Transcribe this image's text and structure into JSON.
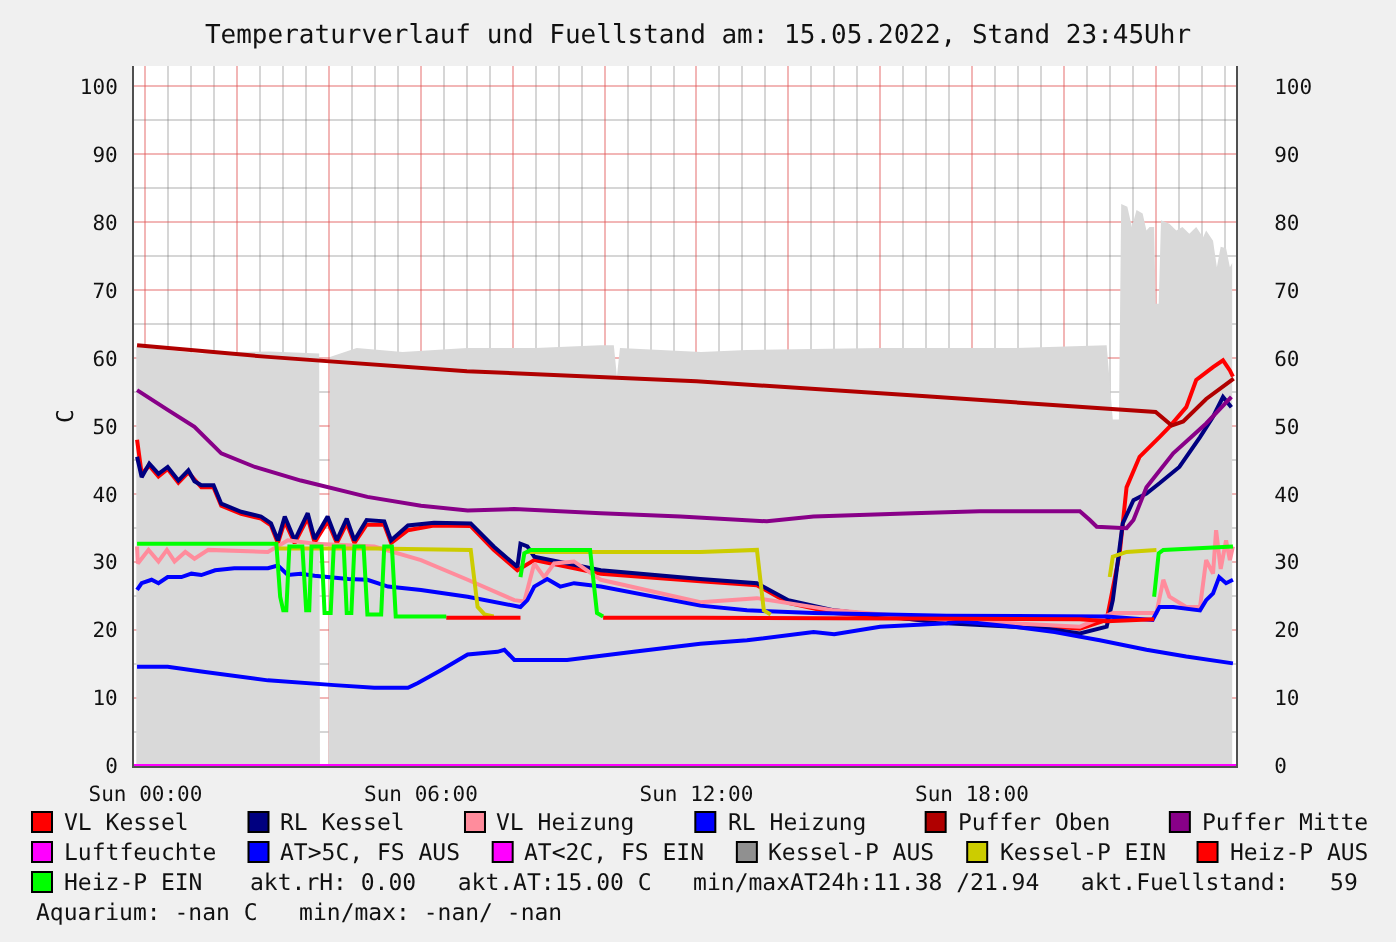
{
  "chart_data": {
    "type": "line",
    "title": "Temperaturverlauf und Fuellstand am: 15.05.2022, Stand 23:45Uhr",
    "ylabel": "C",
    "xlim": [
      "2022-05-14T23:45",
      "2022-05-15T23:45"
    ],
    "xticks": [
      {
        "value": "2022-05-15T00:00",
        "label": "Sun 00:00"
      },
      {
        "value": "2022-05-15T02:00",
        "label": null
      },
      {
        "value": "2022-05-15T04:00",
        "label": null
      },
      {
        "value": "2022-05-15T06:00",
        "label": "Sun 06:00"
      },
      {
        "value": "2022-05-15T08:00",
        "label": null
      },
      {
        "value": "2022-05-15T10:00",
        "label": null
      },
      {
        "value": "2022-05-15T12:00",
        "label": "Sun 12:00"
      },
      {
        "value": "2022-05-15T14:00",
        "label": null
      },
      {
        "value": "2022-05-15T16:00",
        "label": null
      },
      {
        "value": "2022-05-15T18:00",
        "label": "Sun 18:00"
      },
      {
        "value": "2022-05-15T20:00",
        "label": null
      },
      {
        "value": "2022-05-15T22:00",
        "label": null
      }
    ],
    "ylim": [
      0,
      103
    ],
    "yticks": [
      0,
      10,
      20,
      30,
      40,
      50,
      60,
      70,
      80,
      90,
      100
    ],
    "y2lim": [
      0,
      103
    ],
    "y2ticks": [
      0,
      10,
      20,
      30,
      40,
      50,
      60,
      70,
      80,
      90,
      100
    ],
    "grid": true,
    "legend": "bottom",
    "annotations": [
      "akt.rH: 0.00   akt.AT:15.00 C   min/maxAT24h:11.38 /21.94   akt.Fuellstand:   59",
      "Aquarium: -nan C   min/max: -nan/ -nan"
    ],
    "series": [
      {
        "type": "area",
        "color": "#d9d9d9",
        "x": [
          "2022-05-14T23:48",
          "2022-05-15T01:12",
          "2022-05-15T01:54",
          "2022-05-15T02:42",
          "2022-05-15T03:47",
          "2022-05-15T03:48",
          "2022-05-15T03:59",
          "2022-05-15T04:01",
          "2022-05-15T04:36",
          "2022-05-15T05:36",
          "2022-05-15T07:00",
          "2022-05-15T08:30",
          "2022-05-15T09:54",
          "2022-05-15T10:12",
          "2022-05-15T10:16",
          "2022-05-15T10:20",
          "2022-05-15T12:06",
          "2022-05-15T13:06",
          "2022-05-15T16:00",
          "2022-05-15T18:54",
          "2022-05-15T20:56",
          "2022-05-15T21:04",
          "2022-05-15T21:12",
          "2022-05-15T21:15",
          "2022-05-15T21:23",
          "2022-05-15T21:29",
          "2022-05-15T21:35",
          "2022-05-15T21:43",
          "2022-05-15T21:48",
          "2022-05-15T21:52",
          "2022-05-15T21:58",
          "2022-05-15T22:00",
          "2022-05-15T22:04",
          "2022-05-15T22:07",
          "2022-05-15T22:18",
          "2022-05-15T22:27",
          "2022-05-15T22:35",
          "2022-05-15T22:44",
          "2022-05-15T22:53",
          "2022-05-15T23:02",
          "2022-05-15T23:06",
          "2022-05-15T23:15",
          "2022-05-15T23:20",
          "2022-05-15T23:25",
          "2022-05-15T23:32",
          "2022-05-15T23:37",
          "2022-05-15T23:40"
        ],
        "values": [
          61.7,
          60.7,
          60.9,
          61,
          60.7,
          0,
          0,
          60.2,
          61.5,
          60.9,
          61.5,
          61.5,
          61.9,
          61.9,
          57.3,
          61.5,
          60.9,
          61.2,
          61.5,
          61.5,
          61.9,
          51,
          51,
          82.7,
          82.3,
          79.3,
          81.8,
          81.3,
          78.8,
          79.3,
          79.3,
          68,
          68,
          80.3,
          79.8,
          78.8,
          79.3,
          78.3,
          79.3,
          77.8,
          78.8,
          77.3,
          73.4,
          76.4,
          76.2,
          73.4,
          74
        ]
      },
      {
        "name": "VL Kessel",
        "color": "#ff0000",
        "x": [
          "2022-05-14T23:49",
          "2022-05-14T23:55",
          "2022-05-15T00:05",
          "2022-05-15T00:17",
          "2022-05-15T00:29",
          "2022-05-15T00:43",
          "2022-05-15T00:56",
          "2022-05-15T01:13",
          "2022-05-15T01:29",
          "2022-05-15T01:39",
          "2022-05-15T02:05",
          "2022-05-15T02:31",
          "2022-05-15T02:44",
          "2022-05-15T02:53",
          "2022-05-15T03:02",
          "2022-05-15T03:15",
          "2022-05-15T03:32",
          "2022-05-15T03:41",
          "2022-05-15T03:58",
          "2022-05-15T04:10",
          "2022-05-15T04:23",
          "2022-05-15T04:33",
          "2022-05-15T04:49",
          "2022-05-15T05:12",
          "2022-05-15T05:21",
          "2022-05-15T05:43",
          "2022-05-15T06:17",
          "2022-05-15T07:05",
          "2022-05-15T07:35",
          "2022-05-15T08:06",
          "2022-05-15T08:28",
          "2022-05-15T09:55",
          "2022-05-15T12:05",
          "2022-05-15T13:19",
          "2022-05-15T14:00",
          "2022-05-15T15:00",
          "2022-05-15T17:27",
          "2022-05-15T19:39",
          "2022-05-15T20:21",
          "2022-05-15T20:56",
          "2022-05-15T21:13",
          "2022-05-15T21:22",
          "2022-05-15T21:39",
          "2022-05-15T22:05",
          "2022-05-15T22:18",
          "2022-05-15T22:40",
          "2022-05-15T22:53",
          "2022-05-15T23:15",
          "2022-05-15T23:28",
          "2022-05-15T23:37",
          "2022-05-15T23:41"
        ],
        "values": [
          48,
          43,
          44.2,
          42.6,
          43.7,
          41.7,
          43.2,
          41,
          41,
          38.3,
          37.1,
          36.4,
          35.4,
          32.8,
          36,
          32.8,
          36.5,
          32.9,
          36,
          32.8,
          35.7,
          32.8,
          35.5,
          35.5,
          32.8,
          34.7,
          35.4,
          35.3,
          31.8,
          28.8,
          30.3,
          28.3,
          27.2,
          26.6,
          24,
          22.5,
          21.2,
          20.6,
          20.2,
          21.5,
          31.3,
          41,
          45.5,
          48.4,
          49.9,
          52.8,
          56.8,
          58.7,
          59.7,
          58.2,
          57.3
        ]
      },
      {
        "name": "RL Kessel",
        "color": "#000080",
        "x": [
          "2022-05-14T23:49",
          "2022-05-14T23:55",
          "2022-05-15T00:05",
          "2022-05-15T00:17",
          "2022-05-15T00:29",
          "2022-05-15T00:43",
          "2022-05-15T00:56",
          "2022-05-15T01:04",
          "2022-05-15T01:13",
          "2022-05-15T01:29",
          "2022-05-15T01:39",
          "2022-05-15T02:05",
          "2022-05-15T02:31",
          "2022-05-15T02:44",
          "2022-05-15T02:53",
          "2022-05-15T03:02",
          "2022-05-15T03:15",
          "2022-05-15T03:32",
          "2022-05-15T03:41",
          "2022-05-15T03:58",
          "2022-05-15T04:10",
          "2022-05-15T04:23",
          "2022-05-15T04:33",
          "2022-05-15T04:49",
          "2022-05-15T05:12",
          "2022-05-15T05:21",
          "2022-05-15T05:43",
          "2022-05-15T06:17",
          "2022-05-15T07:05",
          "2022-05-15T07:35",
          "2022-05-15T08:06",
          "2022-05-15T08:10",
          "2022-05-15T08:19",
          "2022-05-15T08:28",
          "2022-05-15T09:55",
          "2022-05-15T12:05",
          "2022-05-15T13:19",
          "2022-05-15T14:00",
          "2022-05-15T15:00",
          "2022-05-15T17:27",
          "2022-05-15T19:39",
          "2022-05-15T20:21",
          "2022-05-15T20:56",
          "2022-05-15T21:04",
          "2022-05-15T21:17",
          "2022-05-15T21:31",
          "2022-05-15T21:48",
          "2022-05-15T22:05",
          "2022-05-15T22:31",
          "2022-05-15T22:58",
          "2022-05-15T23:15",
          "2022-05-15T23:28",
          "2022-05-15T23:39"
        ],
        "values": [
          45.5,
          42.5,
          44.5,
          43,
          44,
          42,
          43.5,
          41.9,
          41.3,
          41.3,
          38.6,
          37.4,
          36.7,
          35.7,
          33.2,
          36.7,
          33.2,
          37.2,
          33.4,
          36.7,
          33.2,
          36.4,
          33.2,
          36.2,
          36,
          33.2,
          35.4,
          35.8,
          35.7,
          32.3,
          29.3,
          32.7,
          32.3,
          30.8,
          28.8,
          27.5,
          26.9,
          24.4,
          22.9,
          21,
          20.2,
          19.5,
          20.5,
          24.4,
          35.7,
          39.1,
          40.1,
          41.6,
          44,
          48.4,
          51.4,
          54.3,
          52.8
        ]
      },
      {
        "name": "VL Heizung",
        "color": "#ff8c9c",
        "x": [
          "2022-05-14T23:49",
          "2022-05-14T23:50",
          "2022-05-15T00:04",
          "2022-05-15T00:17",
          "2022-05-15T00:28",
          "2022-05-15T00:38",
          "2022-05-15T00:52",
          "2022-05-15T01:04",
          "2022-05-15T01:22",
          "2022-05-15T02:40",
          "2022-05-15T03:06",
          "2022-05-15T03:41",
          "2022-05-15T04:59",
          "2022-05-15T06:00",
          "2022-05-15T07:01",
          "2022-05-15T08:02",
          "2022-05-15T08:15",
          "2022-05-15T08:28",
          "2022-05-15T08:41",
          "2022-05-15T08:54",
          "2022-05-15T09:20",
          "2022-05-15T09:55",
          "2022-05-15T12:05",
          "2022-05-15T13:19",
          "2022-05-15T15:00",
          "2022-05-15T17:27",
          "2022-05-15T20:21",
          "2022-05-15T21:04",
          "2022-05-15T22:01",
          "2022-05-15T22:10",
          "2022-05-15T22:18",
          "2022-05-15T22:40",
          "2022-05-15T22:58",
          "2022-05-15T23:06",
          "2022-05-15T23:15",
          "2022-05-15T23:19",
          "2022-05-15T23:25",
          "2022-05-15T23:32",
          "2022-05-15T23:37",
          "2022-05-15T23:41"
        ],
        "values": [
          32.3,
          29.8,
          31.8,
          30.1,
          31.8,
          30.1,
          31.5,
          30.5,
          31.8,
          31.5,
          33.2,
          32.7,
          32.3,
          30.3,
          27.4,
          24.4,
          24.2,
          29.8,
          27.8,
          29.8,
          30.1,
          27.4,
          24.1,
          24.7,
          22.9,
          21.5,
          20.5,
          22.5,
          22.5,
          27.4,
          24.9,
          23.4,
          23.4,
          30.3,
          28.3,
          34.7,
          29,
          33.2,
          30.3,
          32.3
        ]
      },
      {
        "name": "RL Heizung",
        "color": "#0000ff",
        "x": [
          "2022-05-14T23:49",
          "2022-05-14T23:55",
          "2022-05-15T00:08",
          "2022-05-15T00:17",
          "2022-05-15T00:29",
          "2022-05-15T00:47",
          "2022-05-15T01:00",
          "2022-05-15T01:13",
          "2022-05-15T01:31",
          "2022-05-15T01:56",
          "2022-05-15T02:40",
          "2022-05-15T02:53",
          "2022-05-15T03:06",
          "2022-05-15T03:23",
          "2022-05-15T03:41",
          "2022-05-15T04:25",
          "2022-05-15T04:50",
          "2022-05-15T05:17",
          "2022-05-15T06:00",
          "2022-05-15T07:01",
          "2022-05-15T08:10",
          "2022-05-15T08:19",
          "2022-05-15T08:28",
          "2022-05-15T08:45",
          "2022-05-15T09:02",
          "2022-05-15T09:20",
          "2022-05-15T09:55",
          "2022-05-15T12:05",
          "2022-05-15T13:06",
          "2022-05-15T14:33",
          "2022-05-15T17:27",
          "2022-05-15T20:56",
          "2022-05-15T21:56",
          "2022-05-15T22:05",
          "2022-05-15T22:23",
          "2022-05-15T22:58",
          "2022-05-15T23:06",
          "2022-05-15T23:15",
          "2022-05-15T23:23",
          "2022-05-15T23:32",
          "2022-05-15T23:41"
        ],
        "values": [
          25.9,
          26.9,
          27.4,
          26.9,
          27.8,
          27.8,
          28.3,
          28.1,
          28.8,
          29.1,
          29.1,
          29.5,
          28.1,
          28.3,
          28,
          27.5,
          27.4,
          26.4,
          25.9,
          24.9,
          23.4,
          24.4,
          26.4,
          27.5,
          26.4,
          26.9,
          26.4,
          23.6,
          22.9,
          22.5,
          22.1,
          22,
          21.5,
          23.4,
          23.4,
          22.9,
          24.4,
          25.4,
          27.8,
          26.9,
          27.4
        ]
      },
      {
        "name": "Puffer Oben",
        "color": "#b00000",
        "x": [
          "2022-05-14T23:49",
          "2022-05-15T02:40",
          "2022-05-15T07:00",
          "2022-05-15T12:00",
          "2022-05-15T17:00",
          "2022-05-15T22:00",
          "2022-05-15T22:21",
          "2022-05-15T22:36",
          "2022-05-15T23:06",
          "2022-05-15T23:42"
        ],
        "values": [
          61.9,
          60.2,
          58.1,
          56.6,
          54.4,
          52.1,
          50.1,
          50.7,
          54,
          57
        ]
      },
      {
        "name": "Puffer Mitte",
        "color": "#880088",
        "x": [
          "2022-05-14T23:49",
          "2022-05-15T00:29",
          "2022-05-15T01:04",
          "2022-05-15T01:39",
          "2022-05-15T02:23",
          "2022-05-15T03:23",
          "2022-05-15T04:50",
          "2022-05-15T06:00",
          "2022-05-15T07:01",
          "2022-05-15T08:02",
          "2022-05-15T09:55",
          "2022-05-15T11:39",
          "2022-05-15T13:32",
          "2022-05-15T14:33",
          "2022-05-15T16:43",
          "2022-05-15T18:10",
          "2022-05-15T20:21",
          "2022-05-15T20:34",
          "2022-05-15T20:43",
          "2022-05-15T21:22",
          "2022-05-15T21:31",
          "2022-05-15T21:48",
          "2022-05-15T22:23",
          "2022-05-15T23:06",
          "2022-05-15T23:39"
        ],
        "values": [
          55.3,
          52.4,
          49.9,
          46,
          44,
          42,
          39.6,
          38.3,
          37.6,
          37.8,
          37.2,
          36.7,
          36,
          36.7,
          37.2,
          37.5,
          37.5,
          36.2,
          35.2,
          35,
          36.2,
          41,
          46,
          50.4,
          54.3
        ]
      },
      {
        "name": "Luftfeuchte",
        "color": "#ff00ff",
        "x": [
          "2022-05-14T23:45",
          "2022-05-15T23:45"
        ],
        "values": [
          0,
          0
        ]
      },
      {
        "name": "AT>5C, FS AUS",
        "color": "#0000ff",
        "x": [
          "2022-05-14T23:49",
          "2022-05-15T00:29",
          "2022-05-15T01:13",
          "2022-05-15T02:40",
          "2022-05-15T04:07",
          "2022-05-15T04:59",
          "2022-05-15T05:43",
          "2022-05-15T05:56",
          "2022-05-15T06:26",
          "2022-05-15T07:01",
          "2022-05-15T07:40",
          "2022-05-15T07:49",
          "2022-05-15T08:02",
          "2022-05-15T09:11",
          "2022-05-15T10:38",
          "2022-05-15T12:05",
          "2022-05-15T13:06",
          "2022-05-15T14:33",
          "2022-05-15T15:00",
          "2022-05-15T16:00",
          "2022-05-15T17:27",
          "2022-05-15T17:45",
          "2022-05-15T18:54",
          "2022-05-15T19:48",
          "2022-05-15T20:47",
          "2022-05-15T21:48",
          "2022-05-15T22:40",
          "2022-05-15T23:41"
        ],
        "values": [
          14.6,
          14.6,
          13.9,
          12.6,
          11.9,
          11.5,
          11.5,
          12.2,
          14.1,
          16.4,
          16.8,
          17.1,
          15.6,
          15.6,
          16.8,
          18,
          18.5,
          19.7,
          19.4,
          20.5,
          21,
          21.3,
          20.5,
          19.7,
          18.5,
          17.1,
          16.1,
          15.1
        ]
      },
      {
        "name": "AT<2C, FS EIN",
        "color": "#ff00ff"
      },
      {
        "name": "Kessel-P AUS",
        "color": "#909090"
      },
      {
        "name": "Kessel-P EIN",
        "color": "#cccc00",
        "x": [
          "2022-05-15T02:53",
          "2022-05-15T05:00",
          "2022-05-15T07:05",
          "2022-05-15T07:14",
          "2022-05-15T07:23",
          "2022-05-15T07:35",
          "2022-05-15T07:36",
          "2022-05-15T08:19",
          "2022-05-15T12:05",
          "2022-05-15T13:19",
          "2022-05-15T13:28",
          "2022-05-15T13:37",
          "2022-05-15T13:38",
          "2022-05-15T21:00",
          "2022-05-15T21:04",
          "2022-05-15T21:22",
          "2022-05-15T22:01"
        ],
        "values": [
          32,
          32,
          31.8,
          23.4,
          22.3,
          22,
          null,
          31.5,
          31.5,
          31.8,
          22.9,
          22.3,
          null,
          27.8,
          30.8,
          31.5,
          31.8
        ]
      },
      {
        "name": "Heiz-P AUS",
        "color": "#ff0000",
        "x": [
          "2022-05-15T06:33",
          "2022-05-15T08:10",
          "2022-05-15T08:12",
          "2022-05-15T09:58",
          "2022-05-15T12:05",
          "2022-05-15T20:21",
          "2022-05-15T20:56",
          "2022-05-15T21:58"
        ],
        "values": [
          21.8,
          21.8,
          null,
          21.8,
          21.8,
          21.6,
          21.3,
          21.6
        ]
      },
      {
        "name": "Heiz-P EIN",
        "color": "#00ff00",
        "x": [
          "2022-05-14T23:49",
          "2022-05-15T02:51",
          "2022-05-15T02:56",
          "2022-05-15T03:00",
          "2022-05-15T03:04",
          "2022-05-15T03:08",
          "2022-05-15T03:25",
          "2022-05-15T03:30",
          "2022-05-15T03:34",
          "2022-05-15T03:37",
          "2022-05-15T03:50",
          "2022-05-15T03:54",
          "2022-05-15T04:02",
          "2022-05-15T04:06",
          "2022-05-15T04:19",
          "2022-05-15T04:23",
          "2022-05-15T04:29",
          "2022-05-15T04:33",
          "2022-05-15T04:45",
          "2022-05-15T04:50",
          "2022-05-15T05:08",
          "2022-05-15T05:12",
          "2022-05-15T05:22",
          "2022-05-15T05:27",
          "2022-05-15T06:33",
          "2022-05-15T06:36",
          "2022-05-15T08:10",
          "2022-05-15T08:15",
          "2022-05-15T08:23",
          "2022-05-15T09:41",
          "2022-05-15T09:50",
          "2022-05-15T09:58",
          "2022-05-15T10:00",
          "2022-05-15T21:58",
          "2022-05-15T22:04",
          "2022-05-15T22:10",
          "2022-05-15T23:41"
        ],
        "values": [
          32.7,
          32.7,
          24.9,
          22.9,
          22.9,
          32.3,
          32.3,
          22.9,
          22.9,
          32.3,
          32.3,
          22.5,
          22.5,
          32.3,
          32.3,
          22.5,
          22.5,
          32.3,
          32.3,
          22.3,
          22.3,
          32.3,
          32.3,
          22,
          22,
          null,
          27.8,
          31.3,
          31.8,
          31.8,
          22.5,
          22,
          null,
          24.9,
          31.3,
          31.8,
          32.3
        ]
      }
    ]
  }
}
